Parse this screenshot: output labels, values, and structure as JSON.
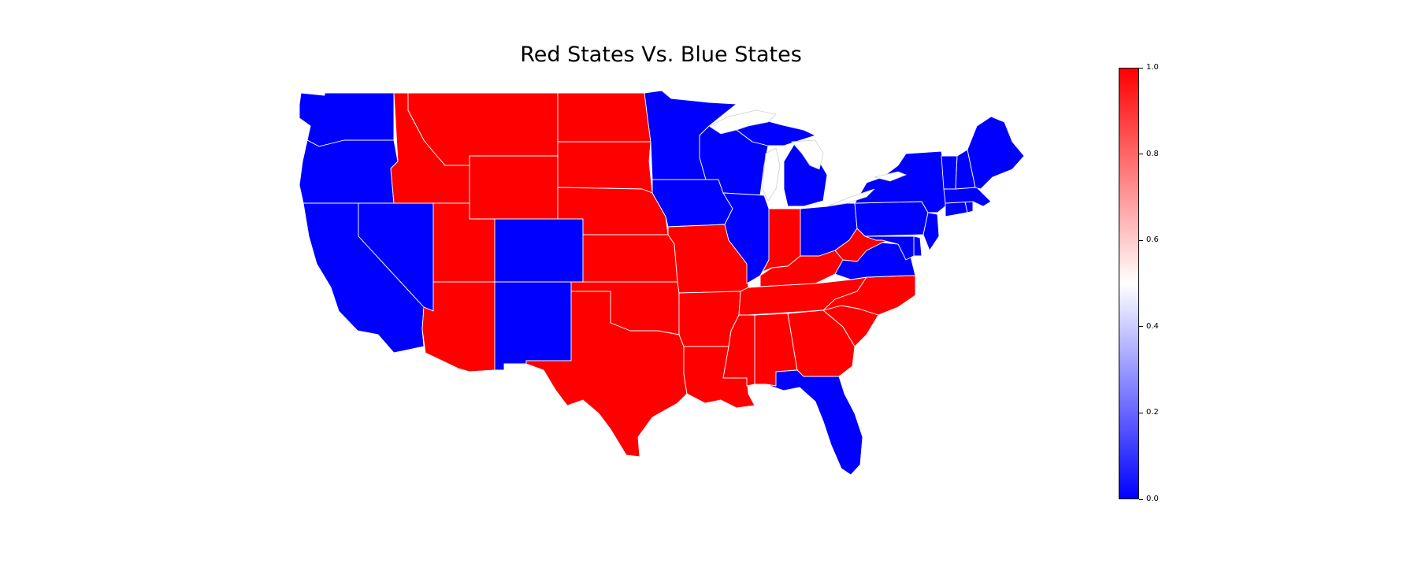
{
  "title": "Red States Vs. Blue States",
  "colors": {
    "red": "#ff0000",
    "blue": "#0000ff",
    "mid": "#ffffff",
    "border": "#ffffff"
  },
  "colorbar": {
    "min": 0.0,
    "max": 1.0,
    "ticks": [
      "0.0",
      "0.2",
      "0.4",
      "0.6",
      "0.8",
      "1.0"
    ],
    "tick_values": [
      0.0,
      0.2,
      0.4,
      0.6,
      0.8,
      1.0
    ]
  },
  "states": {
    "WA": 0,
    "OR": 0,
    "CA": 0,
    "NV": 0,
    "ID": 1,
    "MT": 1,
    "WY": 1,
    "UT": 1,
    "AZ": 1,
    "CO": 0,
    "NM": 0,
    "ND": 1,
    "SD": 1,
    "NE": 1,
    "KS": 1,
    "OK": 1,
    "TX": 1,
    "MN": 0,
    "IA": 0,
    "MO": 1,
    "AR": 1,
    "LA": 1,
    "WI": 0,
    "IL": 0,
    "MI": 0,
    "IN": 1,
    "OH": 0,
    "KY": 1,
    "TN": 1,
    "MS": 1,
    "AL": 1,
    "GA": 1,
    "FL": 0,
    "SC": 1,
    "NC": 1,
    "VA": 0,
    "WV": 1,
    "PA": 0,
    "NY": 0,
    "NJ": 0,
    "DE": 0,
    "MD": 0,
    "DC": 0,
    "CT": 0,
    "RI": 0,
    "MA": 0,
    "VT": 0,
    "NH": 0,
    "ME": 0
  }
}
